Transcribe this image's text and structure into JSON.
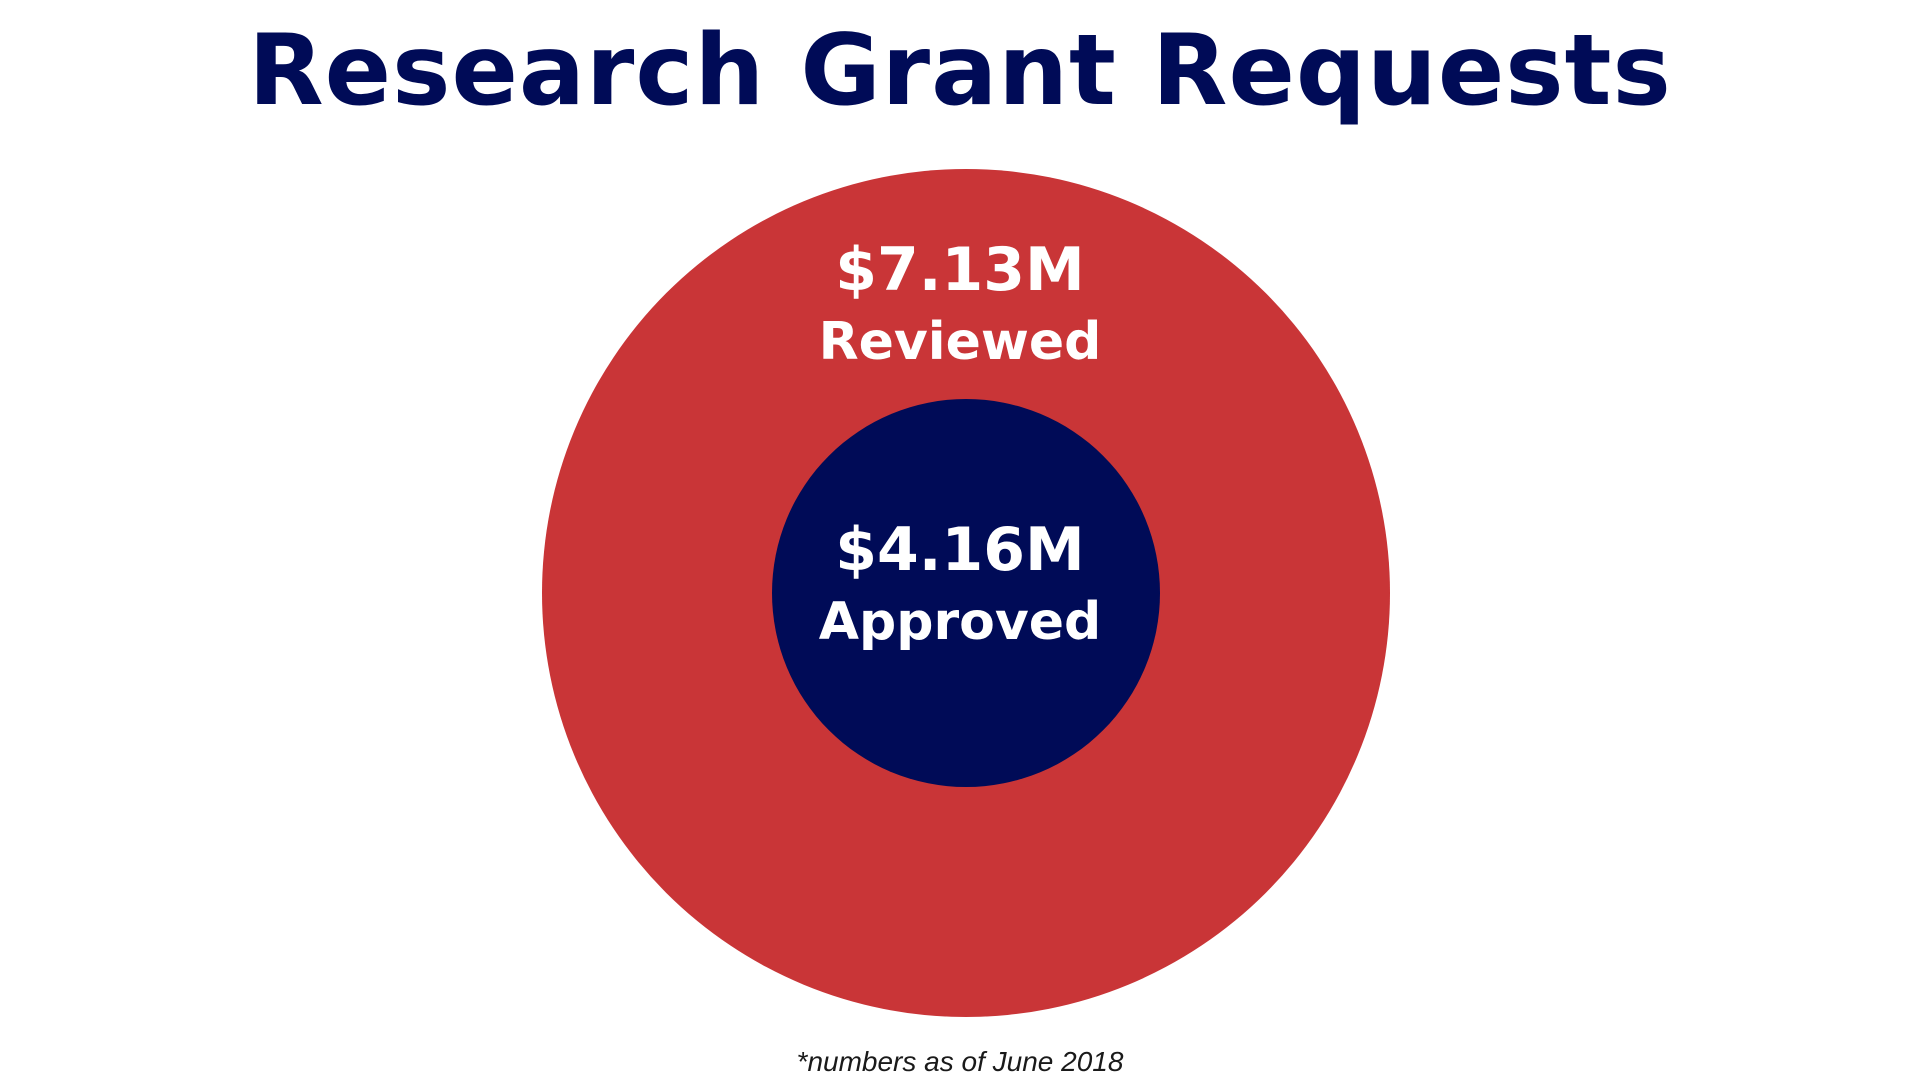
{
  "title": "Research Grant Requests",
  "footnote": "*numbers as of June 2018",
  "chart_data": {
    "type": "nested-circles",
    "title": "Research Grant Requests",
    "unit": "$M",
    "series": [
      {
        "name": "Reviewed",
        "value": 7.13,
        "value_label": "$7.13M",
        "color": "#c93537"
      },
      {
        "name": "Approved",
        "value": 4.16,
        "value_label": "$4.16M",
        "color": "#000b57"
      }
    ],
    "note": "*numbers as of June 2018"
  },
  "colors": {
    "title": "#000b57",
    "outer_circle": "#c93537",
    "inner_circle": "#000b57",
    "label_text": "#ffffff",
    "background": "#ffffff"
  }
}
